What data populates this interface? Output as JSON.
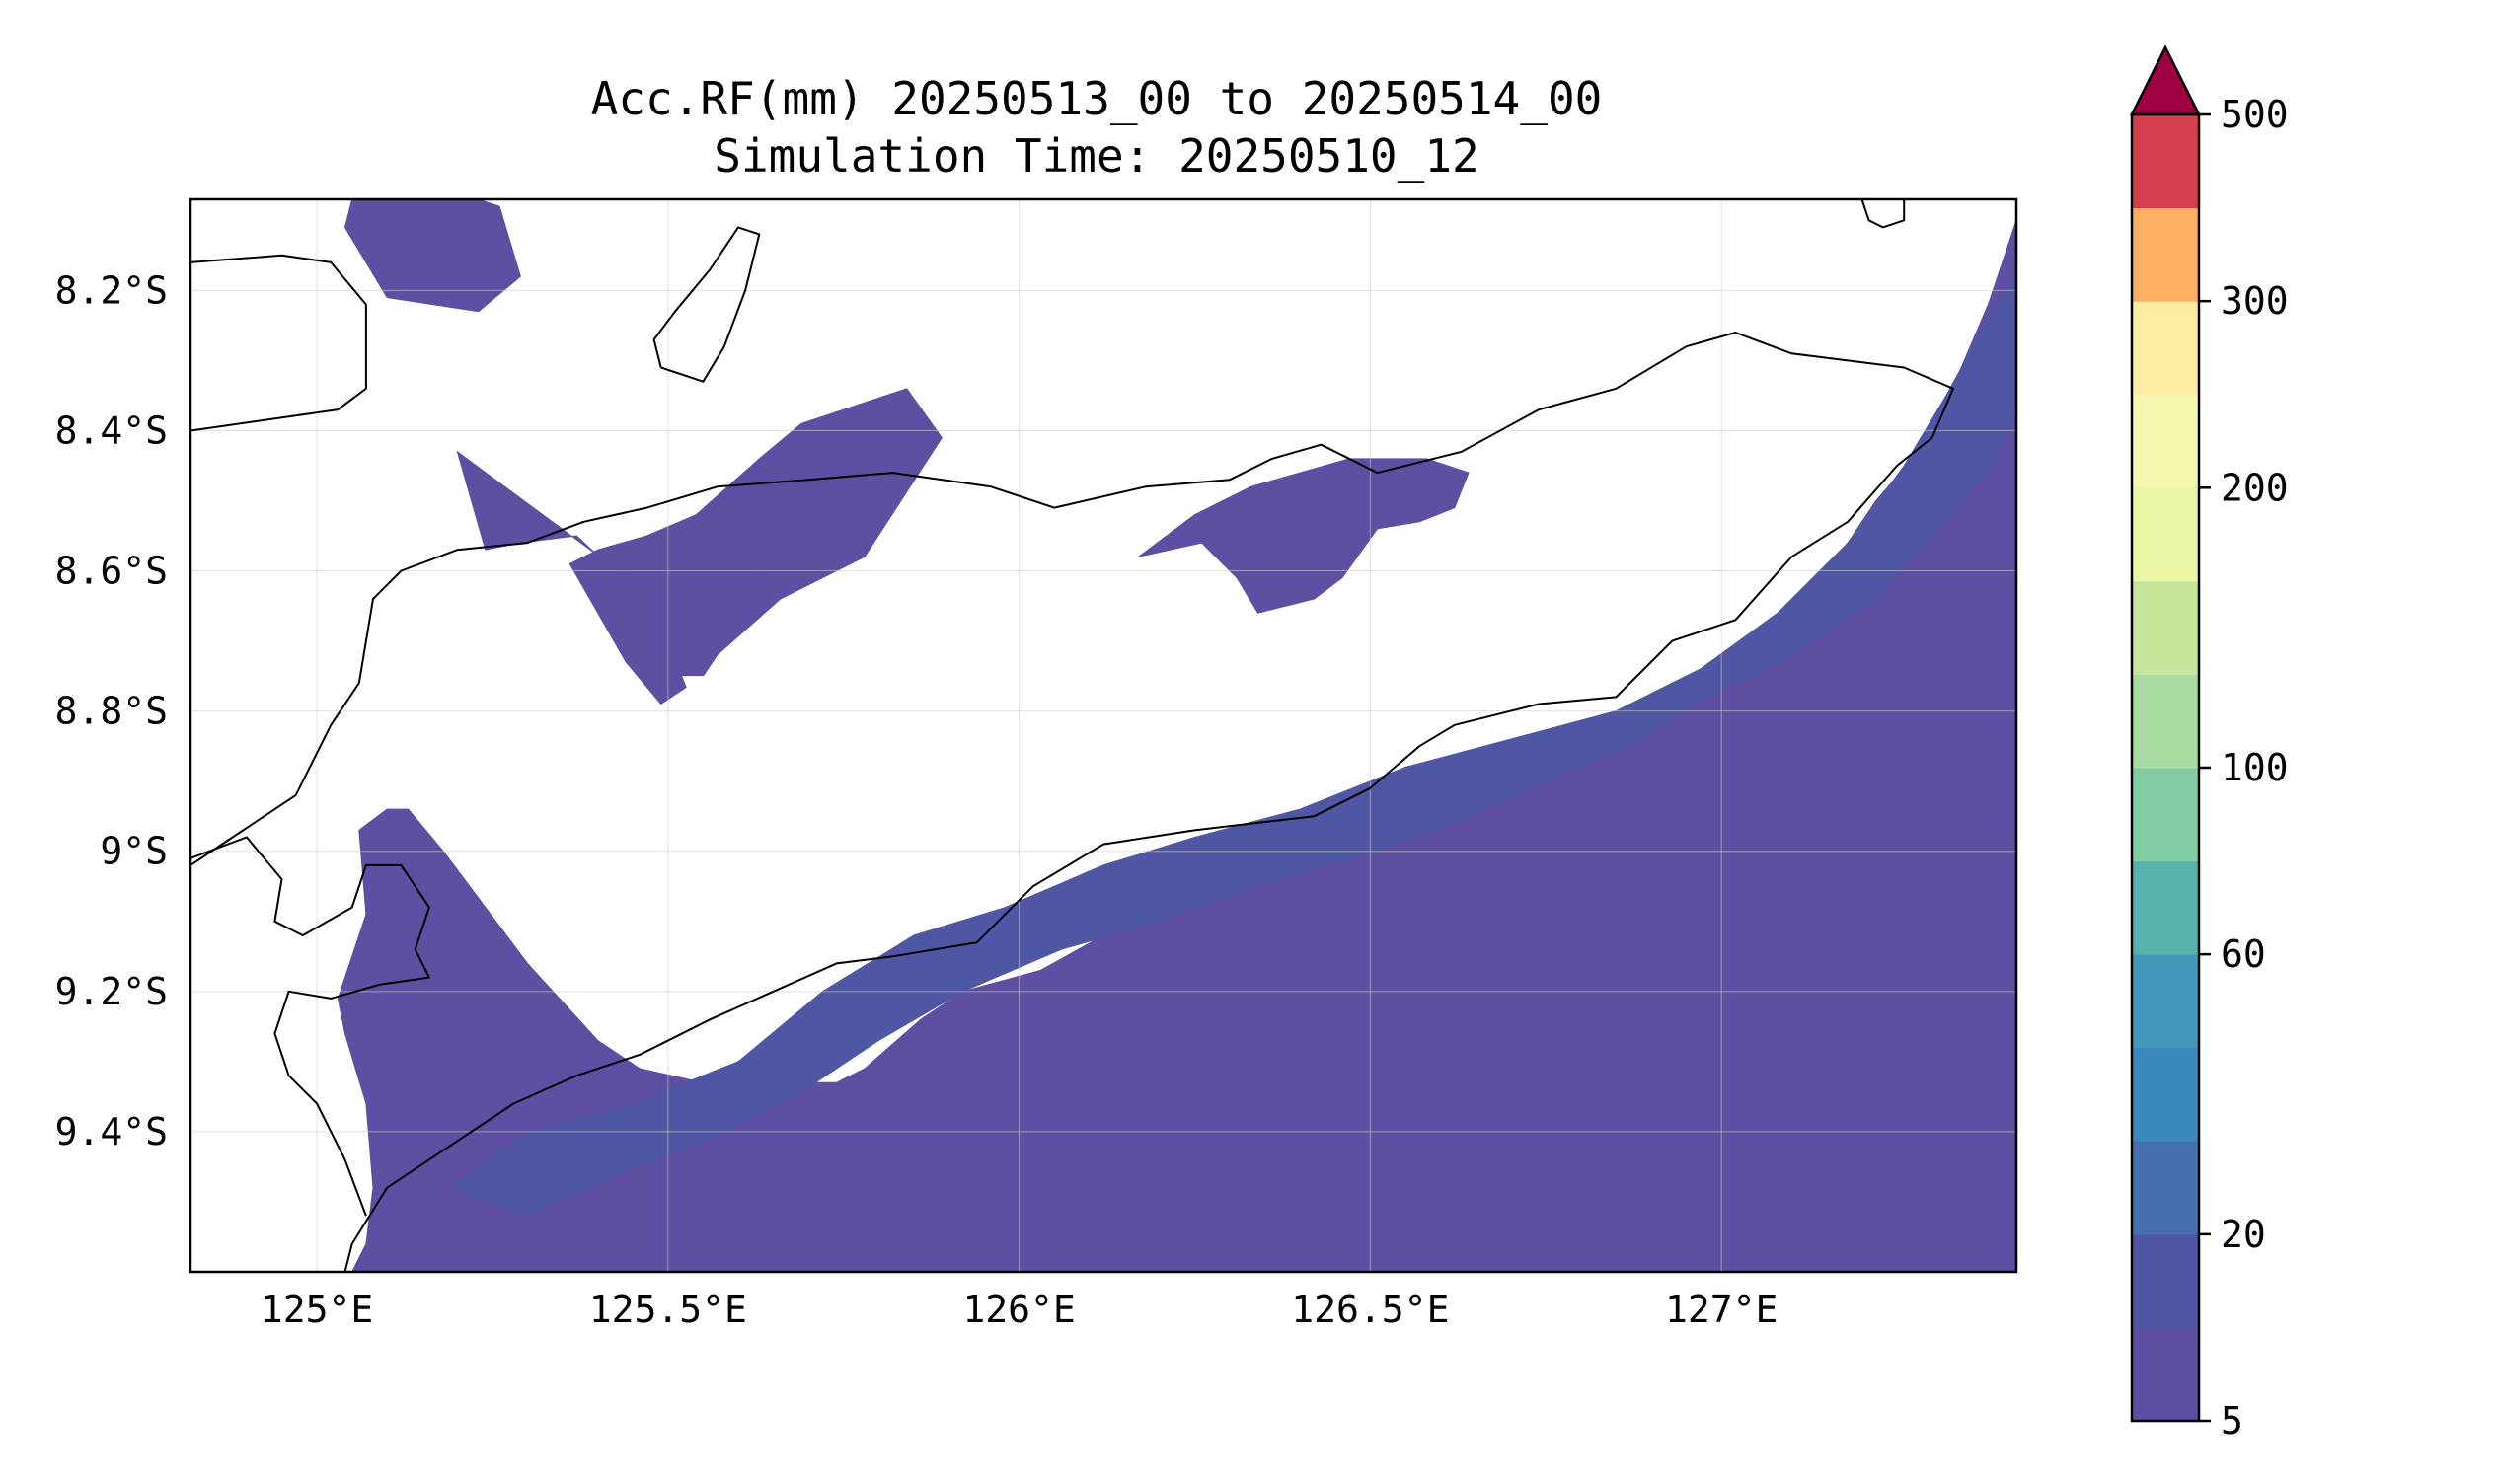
{
  "title_line1": "Acc.RF(mm) 20250513_00 to 20250514_00",
  "title_line2": "Simulation Time: 20250510_12",
  "map": {
    "lon_range": [
      124.82,
      127.42
    ],
    "lat_range": [
      -9.6,
      -8.07
    ],
    "x_ticks": [
      {
        "value": 125.0,
        "label": "125°E"
      },
      {
        "value": 125.5,
        "label": "125.5°E"
      },
      {
        "value": 126.0,
        "label": "126°E"
      },
      {
        "value": 126.5,
        "label": "126.5°E"
      },
      {
        "value": 127.0,
        "label": "127°E"
      }
    ],
    "y_ticks": [
      {
        "value": -8.2,
        "label": "8.2°S"
      },
      {
        "value": -8.4,
        "label": "8.4°S"
      },
      {
        "value": -8.6,
        "label": "8.6°S"
      },
      {
        "value": -8.8,
        "label": "8.8°S"
      },
      {
        "value": -9.0,
        "label": "9°S"
      },
      {
        "value": -9.2,
        "label": "9.2°S"
      },
      {
        "value": -9.4,
        "label": "9.4°S"
      }
    ],
    "grid": true
  },
  "colorbar": {
    "levels": [
      5,
      10,
      20,
      30,
      40,
      60,
      80,
      100,
      125,
      150,
      200,
      250,
      300,
      350,
      500
    ],
    "tick_labels": [
      {
        "value": 5,
        "label": "5"
      },
      {
        "value": 20,
        "label": "20"
      },
      {
        "value": 60,
        "label": "60"
      },
      {
        "value": 100,
        "label": "100"
      },
      {
        "value": 200,
        "label": "200"
      },
      {
        "value": 300,
        "label": "300"
      },
      {
        "value": 500,
        "label": "500"
      }
    ],
    "colors": [
      "#5e4fa2",
      "#4f57a5",
      "#466fb0",
      "#3c87bb",
      "#4399b9",
      "#57b2ad",
      "#82cca4",
      "#a8dca2",
      "#c6e69e",
      "#ebf6a4",
      "#f5f8af",
      "#fdeca2",
      "#fdaf62",
      "#d53e4f"
    ],
    "extend_color": "#9e0142"
  },
  "chart_data": {
    "type": "heatmap",
    "title": "Acc.RF(mm) 20250513_00 to 20250514_00\nSimulation Time: 20250510_12",
    "units": "mm",
    "xlabel": "",
    "ylabel": "",
    "xlim": [
      124.82,
      127.42
    ],
    "ylim": [
      -9.6,
      -8.07
    ],
    "observed_classes": [
      {
        "range": [
          5,
          10
        ],
        "color": "#5e4fa2"
      },
      {
        "range": [
          10,
          20
        ],
        "color": "#4f57a5"
      }
    ],
    "rain_regions": [
      {
        "class": "5-10",
        "polygon": [
          [
            125.36,
            -8.59
          ],
          [
            125.44,
            -8.73
          ],
          [
            125.49,
            -8.79
          ],
          [
            125.55,
            -8.75
          ],
          [
            125.57,
            -8.72
          ],
          [
            125.66,
            -8.64
          ],
          [
            125.78,
            -8.58
          ],
          [
            125.89,
            -8.41
          ],
          [
            125.84,
            -8.34
          ],
          [
            125.69,
            -8.39
          ],
          [
            125.63,
            -8.44
          ],
          [
            125.54,
            -8.52
          ],
          [
            125.47,
            -8.55
          ],
          [
            125.4,
            -8.57
          ]
        ]
      },
      {
        "class": "5-10",
        "polygon": [
          [
            125.2,
            -8.43
          ],
          [
            125.24,
            -8.57
          ],
          [
            125.29,
            -8.56
          ],
          [
            125.37,
            -8.55
          ],
          [
            125.52,
            -8.69
          ],
          [
            125.59,
            -8.67
          ],
          [
            125.65,
            -8.64
          ],
          [
            125.63,
            -8.6
          ],
          [
            125.61,
            -8.54
          ],
          [
            125.56,
            -8.56
          ],
          [
            125.51,
            -8.59
          ],
          [
            125.43,
            -8.6
          ]
        ]
      },
      {
        "class": "5-10",
        "polygon": [
          [
            125.06,
            -8.03
          ],
          [
            125.04,
            -8.11
          ],
          [
            125.1,
            -8.21
          ],
          [
            125.23,
            -8.23
          ],
          [
            125.29,
            -8.18
          ],
          [
            125.26,
            -8.08
          ],
          [
            125.14,
            -8.04
          ]
        ]
      },
      {
        "class": "5-10",
        "polygon": [
          [
            126.17,
            -8.58
          ],
          [
            126.26,
            -8.56
          ],
          [
            126.31,
            -8.61
          ],
          [
            126.34,
            -8.66
          ],
          [
            126.42,
            -8.64
          ],
          [
            126.46,
            -8.61
          ],
          [
            126.51,
            -8.54
          ],
          [
            126.57,
            -8.53
          ],
          [
            126.62,
            -8.51
          ],
          [
            126.64,
            -8.46
          ],
          [
            126.58,
            -8.44
          ],
          [
            126.47,
            -8.44
          ],
          [
            126.33,
            -8.48
          ],
          [
            126.25,
            -8.52
          ]
        ]
      },
      {
        "class": "5-10",
        "polygon": [
          [
            125.13,
            -8.94
          ],
          [
            125.18,
            -9.0
          ],
          [
            125.3,
            -9.16
          ],
          [
            125.4,
            -9.27
          ],
          [
            125.46,
            -9.31
          ],
          [
            125.55,
            -9.33
          ],
          [
            125.65,
            -9.33
          ],
          [
            125.74,
            -9.33
          ],
          [
            125.78,
            -9.31
          ],
          [
            125.86,
            -9.24
          ],
          [
            125.92,
            -9.2
          ],
          [
            126.03,
            -9.17
          ],
          [
            126.12,
            -9.12
          ],
          [
            126.19,
            -9.06
          ],
          [
            126.27,
            -9.01
          ],
          [
            126.36,
            -9.01
          ],
          [
            126.49,
            -8.96
          ],
          [
            126.57,
            -8.93
          ],
          [
            126.62,
            -8.88
          ],
          [
            126.68,
            -8.87
          ],
          [
            126.76,
            -8.84
          ],
          [
            126.89,
            -8.82
          ],
          [
            126.94,
            -8.77
          ],
          [
            127.01,
            -8.72
          ],
          [
            127.08,
            -8.69
          ],
          [
            127.13,
            -8.64
          ],
          [
            127.18,
            -8.56
          ],
          [
            127.22,
            -8.5
          ],
          [
            127.28,
            -8.43
          ],
          [
            127.32,
            -8.36
          ],
          [
            127.35,
            -8.29
          ],
          [
            127.38,
            -8.22
          ],
          [
            127.4,
            -8.16
          ],
          [
            127.42,
            -8.1
          ],
          [
            127.42,
            -9.6
          ],
          [
            125.05,
            -9.6
          ],
          [
            125.07,
            -9.56
          ],
          [
            125.08,
            -9.48
          ],
          [
            125.07,
            -9.36
          ],
          [
            125.04,
            -9.26
          ],
          [
            125.03,
            -9.21
          ],
          [
            125.07,
            -9.09
          ],
          [
            125.06,
            -8.97
          ],
          [
            125.1,
            -8.94
          ]
        ]
      },
      {
        "class": "10-20",
        "polygon": [
          [
            125.19,
            -9.48
          ],
          [
            125.3,
            -9.4
          ],
          [
            125.45,
            -9.36
          ],
          [
            125.6,
            -9.3
          ],
          [
            125.72,
            -9.2
          ],
          [
            125.85,
            -9.12
          ],
          [
            125.98,
            -9.08
          ],
          [
            126.12,
            -9.02
          ],
          [
            126.25,
            -8.98
          ],
          [
            126.4,
            -8.94
          ],
          [
            126.55,
            -8.88
          ],
          [
            126.7,
            -8.84
          ],
          [
            126.85,
            -8.8
          ],
          [
            126.97,
            -8.74
          ],
          [
            127.08,
            -8.66
          ],
          [
            127.18,
            -8.56
          ],
          [
            127.26,
            -8.45
          ],
          [
            127.32,
            -8.35
          ],
          [
            127.38,
            -8.24
          ],
          [
            127.42,
            -8.18
          ],
          [
            127.42,
            -8.38
          ],
          [
            127.38,
            -8.46
          ],
          [
            127.3,
            -8.55
          ],
          [
            127.22,
            -8.64
          ],
          [
            127.1,
            -8.72
          ],
          [
            126.98,
            -8.78
          ],
          [
            126.87,
            -8.85
          ],
          [
            126.75,
            -8.9
          ],
          [
            126.62,
            -8.96
          ],
          [
            126.48,
            -9.01
          ],
          [
            126.34,
            -9.05
          ],
          [
            126.2,
            -9.1
          ],
          [
            126.06,
            -9.14
          ],
          [
            125.92,
            -9.2
          ],
          [
            125.8,
            -9.27
          ],
          [
            125.68,
            -9.35
          ],
          [
            125.56,
            -9.41
          ],
          [
            125.43,
            -9.46
          ],
          [
            125.3,
            -9.52
          ]
        ]
      }
    ],
    "dry_holes_in_regions": [
      [
        [
          125.52,
          -8.75
        ],
        [
          125.56,
          -8.85
        ],
        [
          125.59,
          -8.9
        ],
        [
          125.67,
          -8.95
        ],
        [
          125.76,
          -8.94
        ],
        [
          125.87,
          -8.91
        ],
        [
          125.99,
          -8.86
        ],
        [
          126.04,
          -8.78
        ],
        [
          126.0,
          -8.7
        ],
        [
          125.9,
          -8.67
        ],
        [
          125.8,
          -8.69
        ],
        [
          125.7,
          -8.74
        ],
        [
          125.6,
          -8.75
        ]
      ]
    ]
  },
  "coastlines": [
    [
      [
        124.82,
        -8.16
      ],
      [
        124.95,
        -8.15
      ],
      [
        125.02,
        -8.16
      ],
      [
        125.07,
        -8.22
      ],
      [
        125.07,
        -8.34
      ],
      [
        125.03,
        -8.37
      ],
      [
        124.96,
        -8.38
      ],
      [
        124.82,
        -8.4
      ]
    ],
    [
      [
        124.82,
        -9.02
      ],
      [
        124.88,
        -8.98
      ],
      [
        124.97,
        -8.92
      ],
      [
        125.02,
        -8.82
      ],
      [
        125.06,
        -8.76
      ],
      [
        125.08,
        -8.64
      ],
      [
        125.12,
        -8.6
      ],
      [
        125.2,
        -8.57
      ],
      [
        125.3,
        -8.56
      ],
      [
        125.38,
        -8.53
      ],
      [
        125.47,
        -8.51
      ],
      [
        125.57,
        -8.48
      ],
      [
        125.7,
        -8.47
      ],
      [
        125.82,
        -8.46
      ],
      [
        125.96,
        -8.48
      ],
      [
        126.05,
        -8.51
      ],
      [
        126.18,
        -8.48
      ],
      [
        126.3,
        -8.47
      ],
      [
        126.36,
        -8.44
      ],
      [
        126.43,
        -8.42
      ],
      [
        126.51,
        -8.46
      ],
      [
        126.63,
        -8.43
      ],
      [
        126.74,
        -8.37
      ],
      [
        126.85,
        -8.34
      ],
      [
        126.95,
        -8.28
      ],
      [
        127.02,
        -8.26
      ],
      [
        127.1,
        -8.29
      ],
      [
        127.18,
        -8.3
      ],
      [
        127.26,
        -8.31
      ],
      [
        127.33,
        -8.34
      ],
      [
        127.3,
        -8.41
      ],
      [
        127.25,
        -8.45
      ],
      [
        127.18,
        -8.53
      ],
      [
        127.1,
        -8.58
      ],
      [
        127.02,
        -8.67
      ],
      [
        126.93,
        -8.7
      ],
      [
        126.85,
        -8.78
      ],
      [
        126.74,
        -8.79
      ],
      [
        126.62,
        -8.82
      ],
      [
        126.57,
        -8.85
      ],
      [
        126.5,
        -8.91
      ],
      [
        126.42,
        -8.95
      ],
      [
        126.25,
        -8.97
      ],
      [
        126.12,
        -8.99
      ],
      [
        126.02,
        -9.05
      ],
      [
        125.94,
        -9.13
      ],
      [
        125.82,
        -9.15
      ],
      [
        125.74,
        -9.16
      ],
      [
        125.65,
        -9.2
      ],
      [
        125.56,
        -9.24
      ],
      [
        125.46,
        -9.29
      ],
      [
        125.37,
        -9.32
      ],
      [
        125.28,
        -9.36
      ],
      [
        125.19,
        -9.42
      ],
      [
        125.1,
        -9.48
      ],
      [
        125.05,
        -9.56
      ],
      [
        125.04,
        -9.6
      ]
    ],
    [
      [
        124.82,
        -9.01
      ],
      [
        124.9,
        -8.98
      ],
      [
        124.95,
        -9.04
      ],
      [
        124.94,
        -9.1
      ],
      [
        124.98,
        -9.12
      ],
      [
        125.05,
        -9.08
      ],
      [
        125.07,
        -9.02
      ],
      [
        125.12,
        -9.02
      ],
      [
        125.16,
        -9.08
      ],
      [
        125.14,
        -9.14
      ],
      [
        125.16,
        -9.18
      ],
      [
        125.09,
        -9.19
      ],
      [
        125.02,
        -9.21
      ],
      [
        124.96,
        -9.2
      ],
      [
        124.94,
        -9.26
      ],
      [
        124.96,
        -9.32
      ],
      [
        125.0,
        -9.36
      ],
      [
        125.04,
        -9.44
      ],
      [
        125.07,
        -9.52
      ]
    ],
    [
      [
        125.49,
        -8.31
      ],
      [
        125.55,
        -8.33
      ],
      [
        125.58,
        -8.28
      ],
      [
        125.61,
        -8.2
      ],
      [
        125.63,
        -8.12
      ],
      [
        125.6,
        -8.11
      ],
      [
        125.56,
        -8.17
      ],
      [
        125.51,
        -8.23
      ],
      [
        125.48,
        -8.27
      ],
      [
        125.49,
        -8.31
      ]
    ],
    [
      [
        127.2,
        -8.07
      ],
      [
        127.21,
        -8.1
      ],
      [
        127.23,
        -8.11
      ],
      [
        127.26,
        -8.1
      ],
      [
        127.26,
        -8.07
      ]
    ]
  ]
}
